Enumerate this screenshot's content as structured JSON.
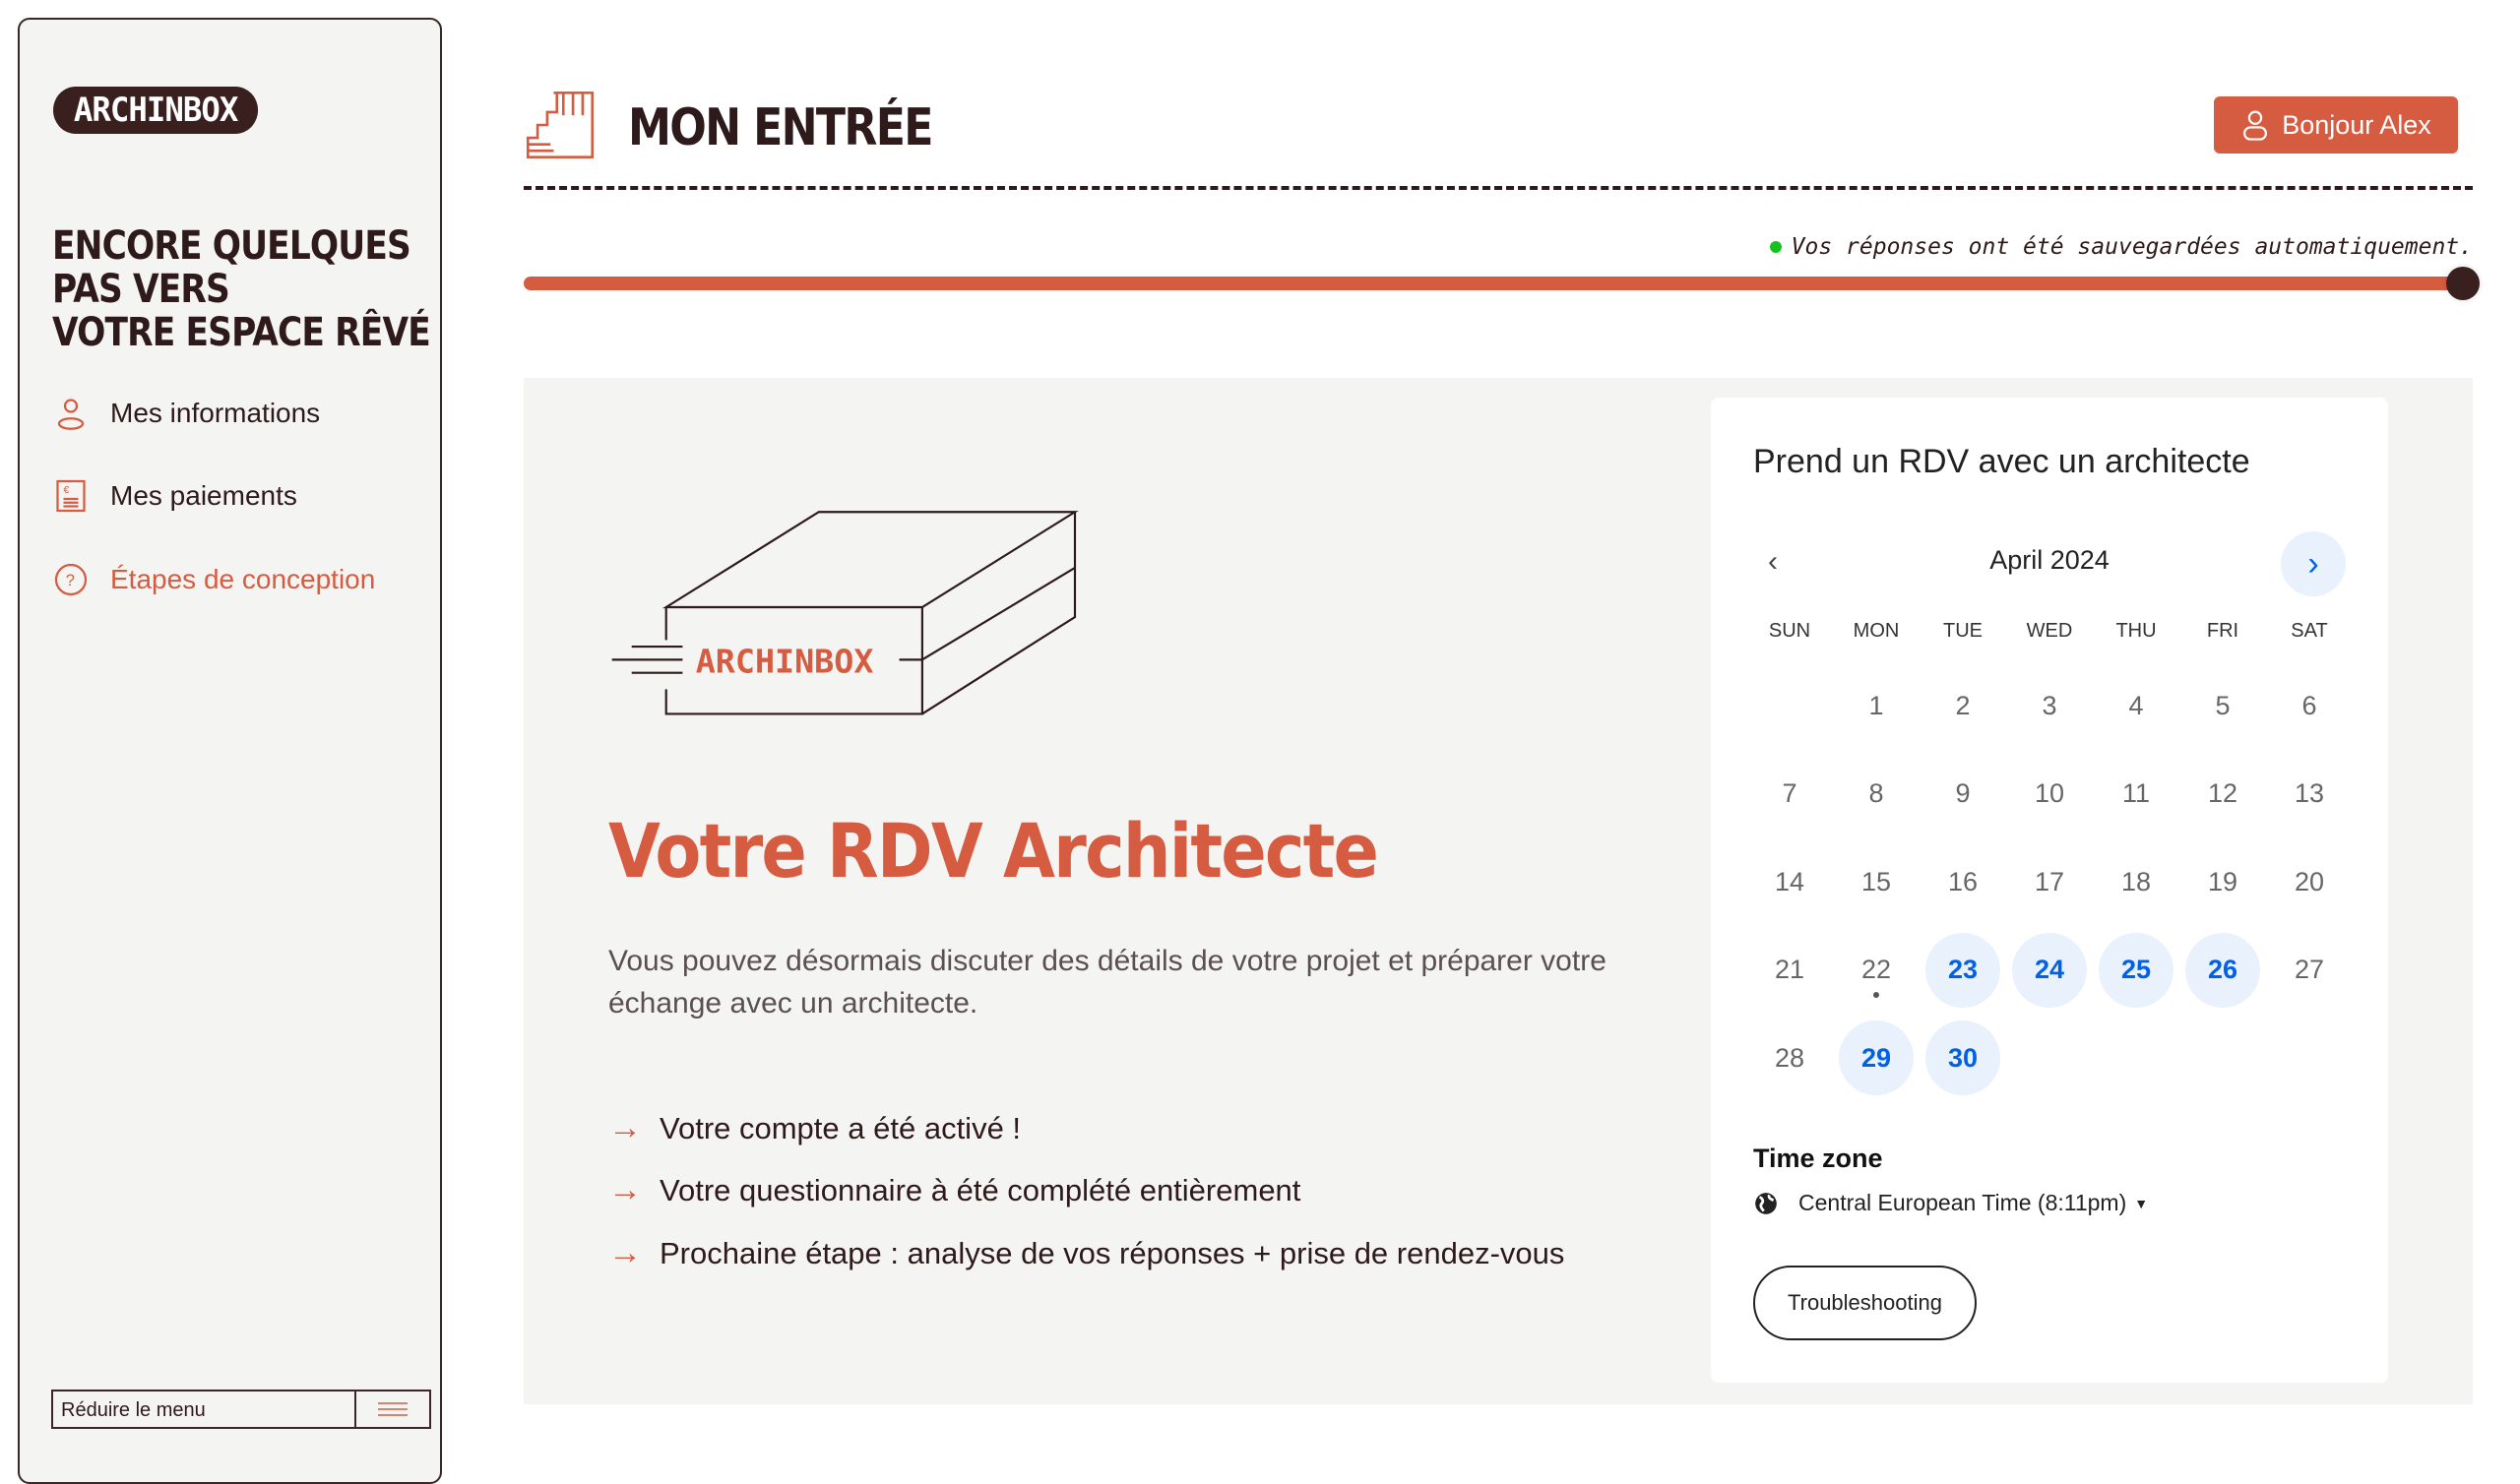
{
  "sidebar": {
    "logo": "ARCHINBOX",
    "tagline": [
      "ENCORE QUELQUES",
      "PAS VERS",
      "VOTRE ESPACE RÊVÉ"
    ],
    "items": [
      {
        "label": "Mes informations",
        "icon": "user-icon"
      },
      {
        "label": "Mes paiements",
        "icon": "invoice-euro-icon"
      },
      {
        "label": "Étapes de conception",
        "icon": "question-circle-icon",
        "active": true
      }
    ],
    "collapse_label": "Réduire le menu"
  },
  "header": {
    "title": "MON ENTRÉE",
    "greeting": "Bonjour Alex",
    "autosave": "Vos réponses ont été sauvegardées automatiquement.",
    "progress_percent": 100
  },
  "main": {
    "illustration_label": "ARCHINBOX",
    "heading": "Votre RDV Architecte",
    "paragraph": "Vous pouvez désormais discuter des détails de votre projet et préparer votre échange avec un architecte.",
    "bullets": [
      "Votre compte a été activé !",
      "Votre questionnaire à été complété entièrement",
      "Prochaine étape : analyse de vos réponses + prise de rendez-vous"
    ]
  },
  "calendar": {
    "title": "Prend un RDV avec un architecte",
    "month": "April 2024",
    "weekdays": [
      "SUN",
      "MON",
      "TUE",
      "WED",
      "THU",
      "FRI",
      "SAT"
    ],
    "first_weekday": 1,
    "days_in_month": 30,
    "today": 22,
    "available": [
      23,
      24,
      25,
      26,
      29,
      30
    ],
    "timezone_label": "Time zone",
    "timezone": "Central European Time (8:11pm)",
    "troubleshooting": "Troubleshooting"
  },
  "colors": {
    "brand": "#d55c40",
    "dark": "#2e1a1a",
    "available": "#0060e6",
    "available_bg": "#e8f1fc",
    "saved_dot": "#19c11e"
  }
}
